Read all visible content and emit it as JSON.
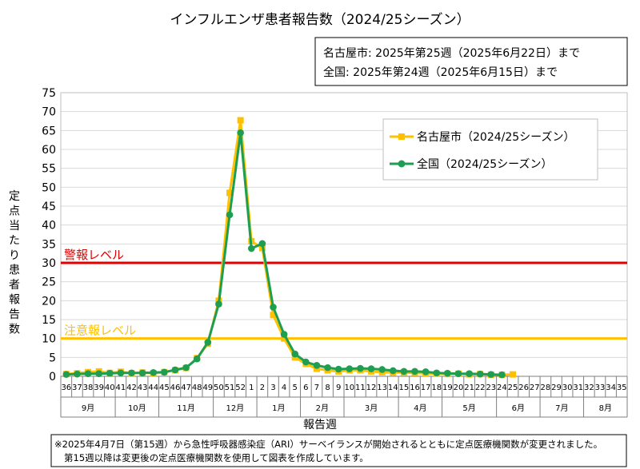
{
  "chart_data": {
    "type": "line",
    "title": "インフルエンザ患者報告数（2024/25シーズン）",
    "info_box": [
      "名古屋市: 2025年第25週（2025年6月22日）まで",
      "全国: 2025年第24週（2025年6月15日）まで"
    ],
    "ylabel": "定点当たり患者報告数",
    "xlabel": "報告週",
    "ylim": [
      0,
      75
    ],
    "yticks": [
      "0",
      "5",
      "10",
      "15",
      "20",
      "25",
      "30",
      "35",
      "40",
      "45",
      "50",
      "55",
      "60",
      "65",
      "70",
      "75"
    ],
    "grid": true,
    "legend_position": "top-right",
    "weeks": [
      "36",
      "37",
      "38",
      "39",
      "40",
      "41",
      "42",
      "43",
      "44",
      "45",
      "46",
      "47",
      "48",
      "49",
      "50",
      "51",
      "52",
      "1",
      "2",
      "3",
      "4",
      "5",
      "6",
      "7",
      "8",
      "9",
      "10",
      "11",
      "12",
      "13",
      "14",
      "15",
      "16",
      "17",
      "18",
      "19",
      "20",
      "21",
      "22",
      "23",
      "24",
      "25",
      "26",
      "27",
      "28",
      "29",
      "30",
      "31",
      "32",
      "33",
      "34",
      "35"
    ],
    "months": [
      {
        "label": "9月",
        "start": 0,
        "end": 5
      },
      {
        "label": "10月",
        "start": 5,
        "end": 9
      },
      {
        "label": "11月",
        "start": 9,
        "end": 14
      },
      {
        "label": "12月",
        "start": 14,
        "end": 18
      },
      {
        "label": "1月",
        "start": 18,
        "end": 22
      },
      {
        "label": "2月",
        "start": 22,
        "end": 26
      },
      {
        "label": "3月",
        "start": 26,
        "end": 31
      },
      {
        "label": "4月",
        "start": 31,
        "end": 35
      },
      {
        "label": "5月",
        "start": 35,
        "end": 40
      },
      {
        "label": "6月",
        "start": 40,
        "end": 44
      },
      {
        "label": "7月",
        "start": 44,
        "end": 48
      },
      {
        "label": "8月",
        "start": 48,
        "end": 52
      }
    ],
    "series": [
      {
        "name": "名古屋市（2024/25シーズン）",
        "color": "#FFC000",
        "marker": "square",
        "values": [
          0.6,
          0.8,
          1.1,
          1.3,
          0.9,
          1.2,
          0.8,
          1.0,
          0.8,
          1.1,
          1.6,
          2.2,
          4.8,
          8.6,
          20.0,
          48.5,
          67.7,
          35.7,
          33.9,
          16.2,
          10.0,
          5.0,
          3.3,
          2.0,
          1.6,
          1.3,
          1.6,
          1.6,
          1.3,
          1.1,
          1.0,
          1.0,
          0.9,
          0.8,
          0.7,
          0.6,
          0.7,
          0.5,
          0.6,
          0.4,
          0.4,
          0.5,
          null,
          null,
          null,
          null,
          null,
          null,
          null,
          null,
          null,
          null
        ]
      },
      {
        "name": "全国（2024/25シーズン）",
        "color": "#1E9E50",
        "marker": "circle",
        "values": [
          0.5,
          0.6,
          0.7,
          0.7,
          0.8,
          0.9,
          0.9,
          0.9,
          1.0,
          1.1,
          1.7,
          2.3,
          4.6,
          9.0,
          19.1,
          42.7,
          64.4,
          33.8,
          35.1,
          18.3,
          11.1,
          5.9,
          3.8,
          2.9,
          2.3,
          1.9,
          2.0,
          2.1,
          2.0,
          1.8,
          1.5,
          1.3,
          1.3,
          1.2,
          0.9,
          0.8,
          0.7,
          0.7,
          0.6,
          0.5,
          0.4,
          null,
          null,
          null,
          null,
          null,
          null,
          null,
          null,
          null,
          null,
          null
        ]
      }
    ],
    "thresholds": [
      {
        "label": "警報レベル",
        "value": 30,
        "color": "#E00000"
      },
      {
        "label": "注意報レベル",
        "value": 10,
        "color": "#FFC000"
      }
    ],
    "footnote": [
      "※2025年4月7日（第15週）から急性呼吸器感染症（ARI）サーベイランスが開始されるとともに定点医療機関数が変更されました。",
      "第15週以降は変更後の定点医療機関数を使用して図表を作成しています。"
    ]
  }
}
